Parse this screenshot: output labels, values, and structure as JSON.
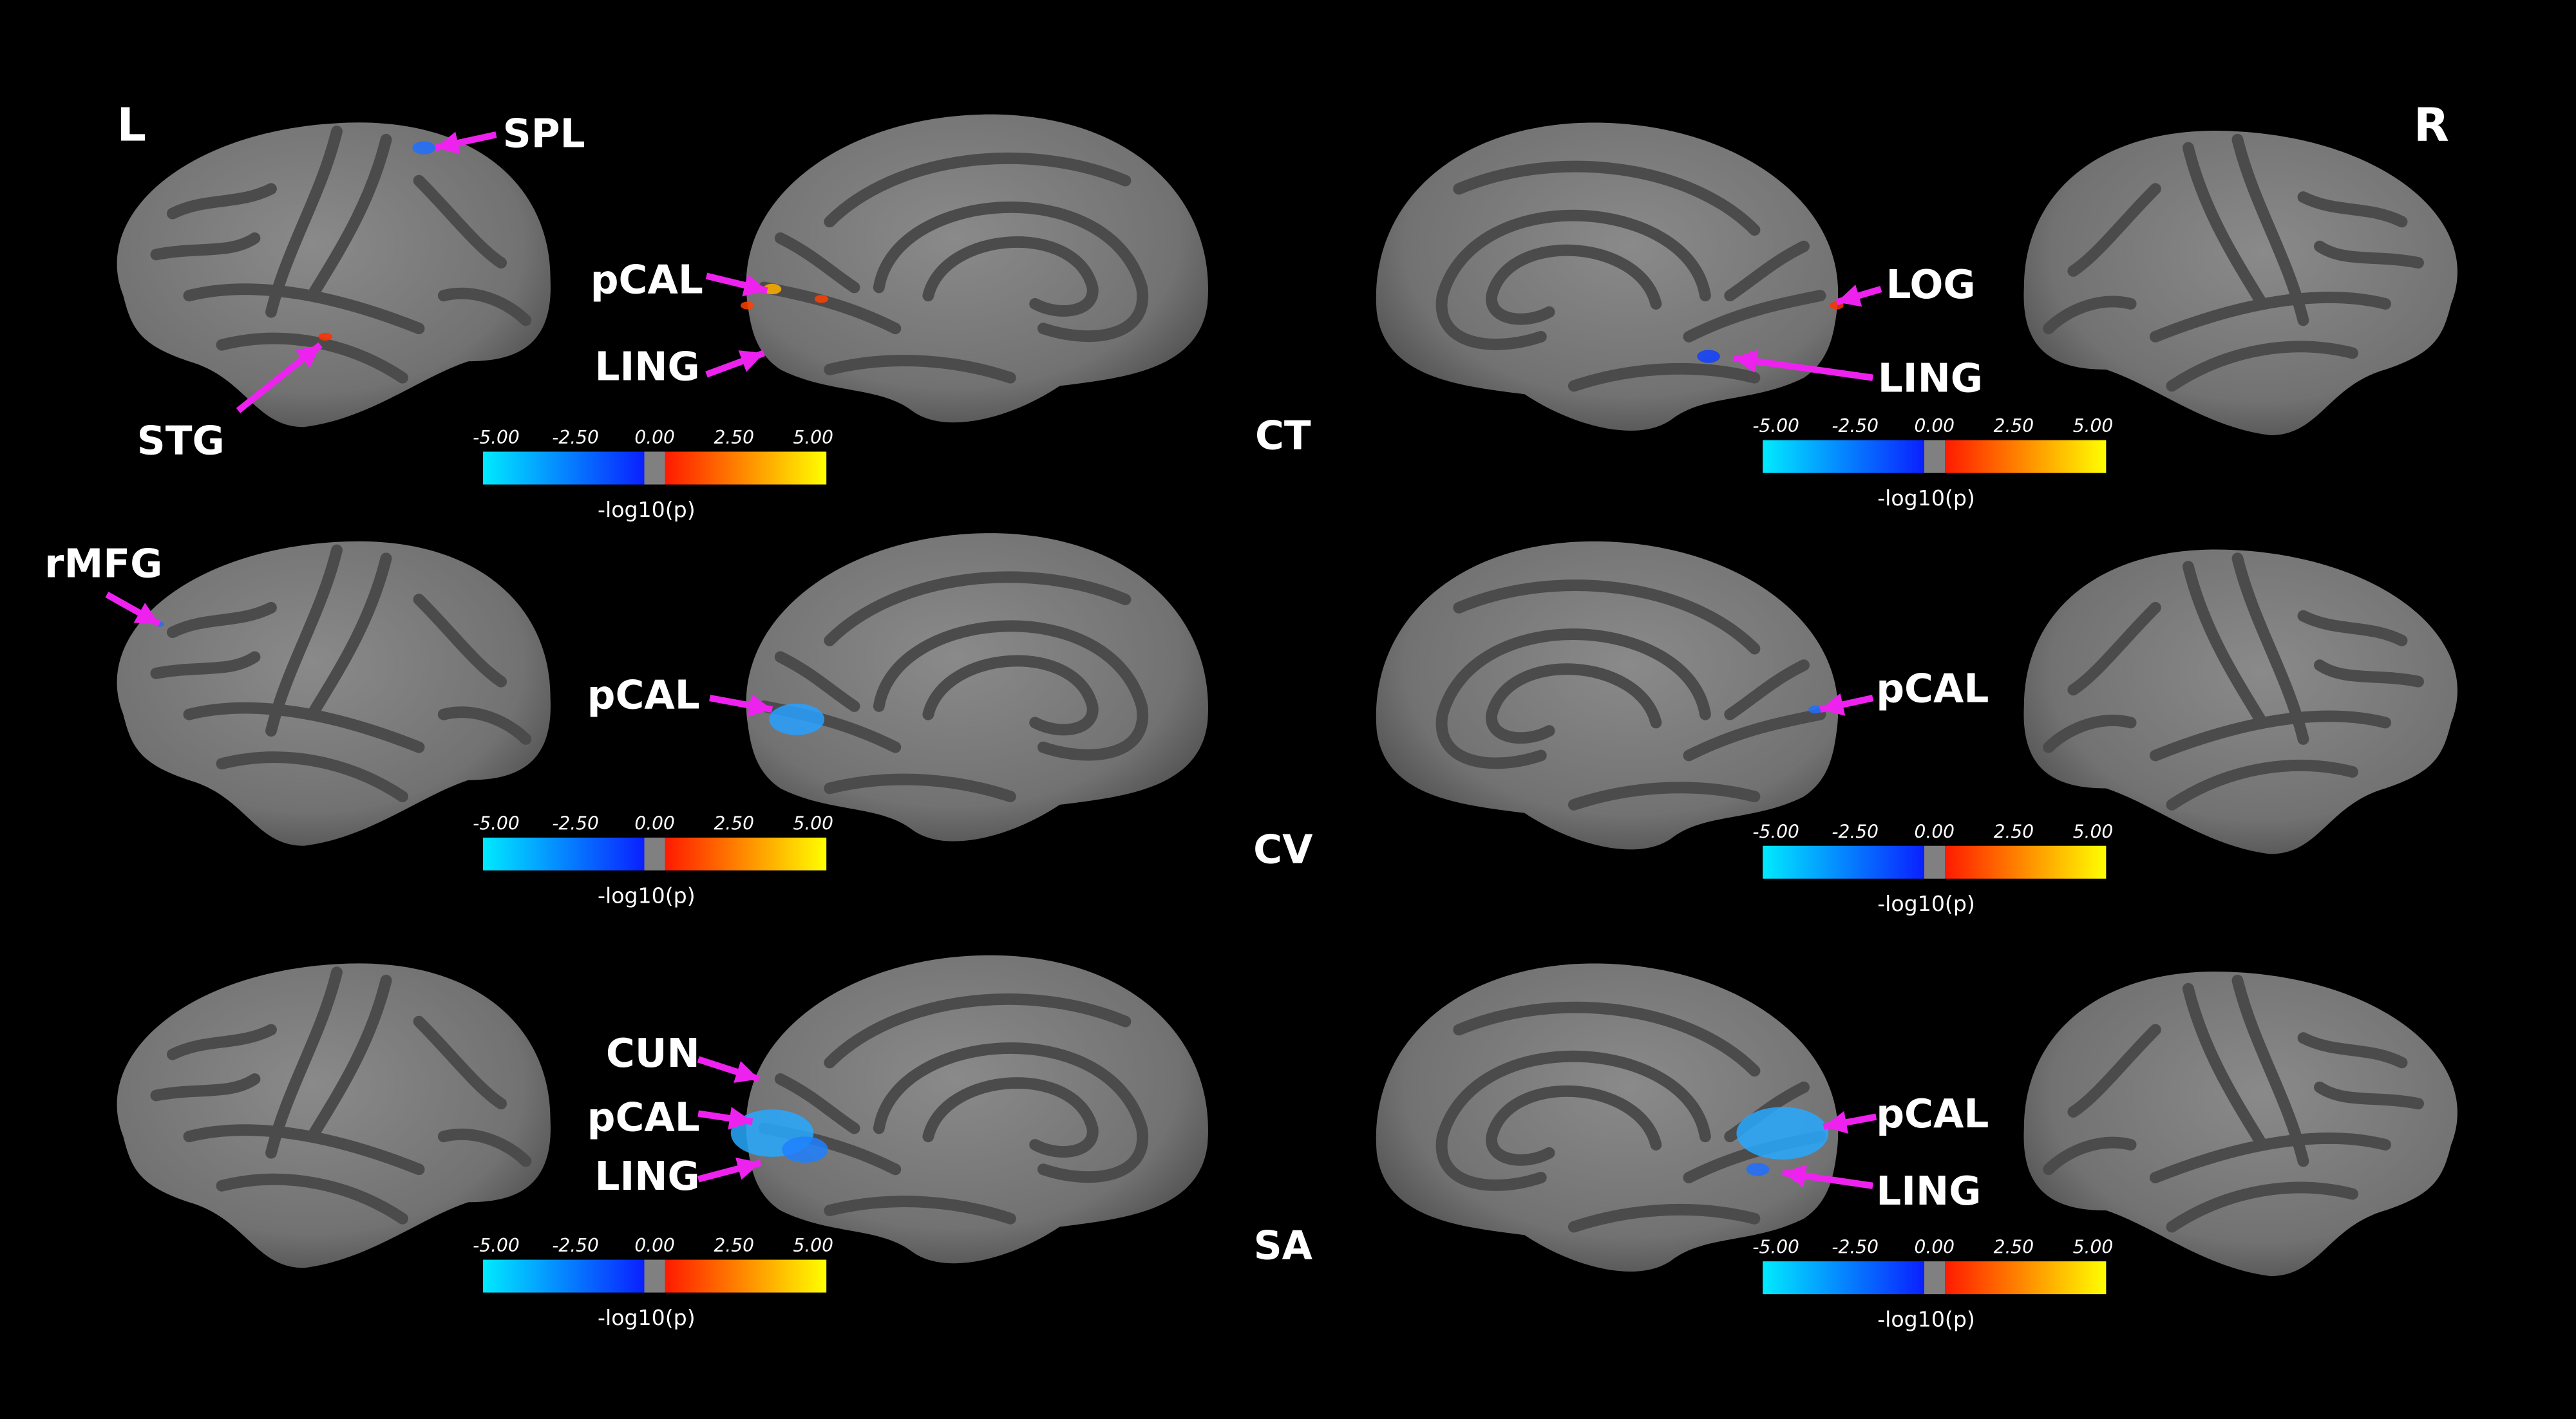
{
  "hemispheres": {
    "left": "L",
    "right": "R"
  },
  "rows": [
    {
      "label": "CT",
      "left_annotations": [
        "SPL",
        "pCAL",
        "LING",
        "STG"
      ],
      "right_annotations": [
        "LOG",
        "LING"
      ]
    },
    {
      "label": "CV",
      "left_annotations": [
        "rMFG",
        "pCAL"
      ],
      "right_annotations": [
        "pCAL"
      ]
    },
    {
      "label": "SA",
      "left_annotations": [
        "CUN",
        "pCAL",
        "LING"
      ],
      "right_annotations": [
        "pCAL",
        "LING"
      ]
    }
  ],
  "colorbar": {
    "ticks": [
      "-5.00",
      "-2.50",
      "0.00",
      "2.50",
      "5.00"
    ],
    "label": "-log10(p)"
  }
}
